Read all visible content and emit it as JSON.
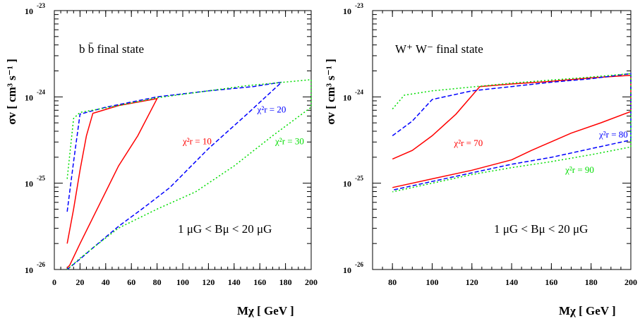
{
  "chart_data": [
    {
      "type": "line",
      "annotation": {
        "fs": "b b̄ final state",
        "bfield": "1 μG < Bμ < 20 μG"
      },
      "xlabel": "Mχ [ GeV ]",
      "ylabel": "σv [ cm³ s⁻¹ ]",
      "xlim": [
        0,
        200
      ],
      "ylim_exponent": [
        -26,
        -23
      ],
      "y_scale": "log",
      "x_ticks": [
        "0",
        "20",
        "40",
        "60",
        "80",
        "100",
        "120",
        "140",
        "160",
        "180",
        "200"
      ],
      "y_ticks": [
        {
          "base": "10",
          "exp": "-26"
        },
        {
          "base": "10",
          "exp": "-25"
        },
        {
          "base": "10",
          "exp": "-24"
        },
        {
          "base": "10",
          "exp": "-23"
        }
      ],
      "series": [
        {
          "color": "#ff0000",
          "dash": "solid",
          "label": {
            "text": "χ²r = 10",
            "at": [
              100,
              -24.55
            ]
          },
          "points": [
            [
              10,
              -25.7
            ],
            [
              15,
              -25.3
            ],
            [
              20,
              -24.85
            ],
            [
              25,
              -24.45
            ],
            [
              30,
              -24.19
            ],
            [
              50,
              -24.1
            ],
            [
              80,
              -24.02
            ],
            [
              80,
              -24.02
            ],
            [
              65,
              -24.45
            ],
            [
              50,
              -24.8
            ],
            [
              40,
              -25.1
            ],
            [
              30,
              -25.4
            ],
            [
              20,
              -25.7
            ],
            [
              12,
              -25.95
            ],
            [
              10,
              -25.98
            ]
          ]
        },
        {
          "color": "#0000ff",
          "dash": "dashed",
          "label": {
            "text": "χ²r = 20",
            "at": [
              158,
              -24.18
            ]
          },
          "points": [
            [
              10,
              -25.33
            ],
            [
              15,
              -24.75
            ],
            [
              20,
              -24.2
            ],
            [
              40,
              -24.12
            ],
            [
              80,
              -24.0
            ],
            [
              120,
              -23.93
            ],
            [
              155,
              -23.88
            ],
            [
              177,
              -23.83
            ],
            [
              177,
              -23.83
            ],
            [
              150,
              -24.2
            ],
            [
              120,
              -24.6
            ],
            [
              90,
              -25.05
            ],
            [
              70,
              -25.28
            ],
            [
              50,
              -25.5
            ],
            [
              30,
              -25.75
            ],
            [
              20,
              -25.88
            ],
            [
              10,
              -26.0
            ]
          ]
        },
        {
          "color": "#00dd00",
          "dash": "dotted",
          "label": {
            "text": "χ²r = 30",
            "at": [
              172,
              -24.55
            ]
          },
          "points": [
            [
              10,
              -24.95
            ],
            [
              15,
              -24.25
            ],
            [
              20,
              -24.18
            ],
            [
              50,
              -24.1
            ],
            [
              80,
              -24.01
            ],
            [
              110,
              -23.95
            ],
            [
              150,
              -23.87
            ],
            [
              200,
              -23.8
            ],
            [
              200,
              -24.12
            ],
            [
              170,
              -24.45
            ],
            [
              140,
              -24.8
            ],
            [
              110,
              -25.1
            ],
            [
              80,
              -25.3
            ],
            [
              50,
              -25.52
            ],
            [
              30,
              -25.75
            ],
            [
              20,
              -25.87
            ],
            [
              10,
              -26.0
            ]
          ]
        }
      ]
    },
    {
      "type": "line",
      "annotation": {
        "fs": "W⁺ W⁻ final state",
        "bfield": "1 μG < Bμ < 20 μG"
      },
      "xlabel": "Mχ [ GeV ]",
      "ylabel": "σv [ cm³ s⁻¹ ]",
      "xlim": [
        70,
        200
      ],
      "ylim_exponent": [
        -26,
        -23
      ],
      "y_scale": "log",
      "x_ticks": [
        "80",
        "100",
        "120",
        "140",
        "160",
        "180",
        "200"
      ],
      "y_ticks": [
        {
          "base": "10",
          "exp": "-26"
        },
        {
          "base": "10",
          "exp": "-25"
        },
        {
          "base": "10",
          "exp": "-24"
        },
        {
          "base": "10",
          "exp": "-23"
        }
      ],
      "series": [
        {
          "color": "#ff0000",
          "dash": "solid",
          "label": {
            "text": "χ²r = 70",
            "at": [
              111,
              -24.57
            ]
          },
          "points": [
            [
              80,
              -24.72
            ],
            [
              90,
              -24.62
            ],
            [
              100,
              -24.45
            ],
            [
              112,
              -24.2
            ],
            [
              124,
              -23.88
            ],
            [
              140,
              -23.85
            ],
            [
              160,
              -23.82
            ],
            [
              180,
              -23.78
            ],
            [
              200,
              -23.75
            ],
            [
              200,
              -24.17
            ],
            [
              185,
              -24.3
            ],
            [
              170,
              -24.42
            ],
            [
              160,
              -24.52
            ],
            [
              150,
              -24.62
            ],
            [
              140,
              -24.73
            ],
            [
              120,
              -24.85
            ],
            [
              100,
              -24.95
            ],
            [
              80,
              -25.05
            ]
          ]
        },
        {
          "color": "#0000ff",
          "dash": "dashed",
          "label": {
            "text": "χ²r = 80",
            "at": [
              184,
              -24.47
            ]
          },
          "points": [
            [
              80,
              -24.45
            ],
            [
              90,
              -24.28
            ],
            [
              100,
              -24.03
            ],
            [
              120,
              -23.93
            ],
            [
              140,
              -23.88
            ],
            [
              160,
              -23.83
            ],
            [
              180,
              -23.79
            ],
            [
              200,
              -23.73
            ],
            [
              200,
              -24.5
            ],
            [
              180,
              -24.6
            ],
            [
              160,
              -24.7
            ],
            [
              140,
              -24.78
            ],
            [
              120,
              -24.88
            ],
            [
              100,
              -24.98
            ],
            [
              80,
              -25.08
            ]
          ]
        },
        {
          "color": "#00dd00",
          "dash": "dotted",
          "label": {
            "text": "χ²r = 90",
            "at": [
              167,
              -24.88
            ]
          },
          "points": [
            [
              80,
              -24.14
            ],
            [
              86,
              -23.98
            ],
            [
              100,
              -23.93
            ],
            [
              140,
              -23.84
            ],
            [
              180,
              -23.77
            ],
            [
              200,
              -23.73
            ],
            [
              200,
              -24.58
            ],
            [
              180,
              -24.67
            ],
            [
              160,
              -24.75
            ],
            [
              140,
              -24.82
            ],
            [
              120,
              -24.9
            ],
            [
              100,
              -25.0
            ],
            [
              80,
              -25.1
            ]
          ]
        }
      ]
    }
  ]
}
